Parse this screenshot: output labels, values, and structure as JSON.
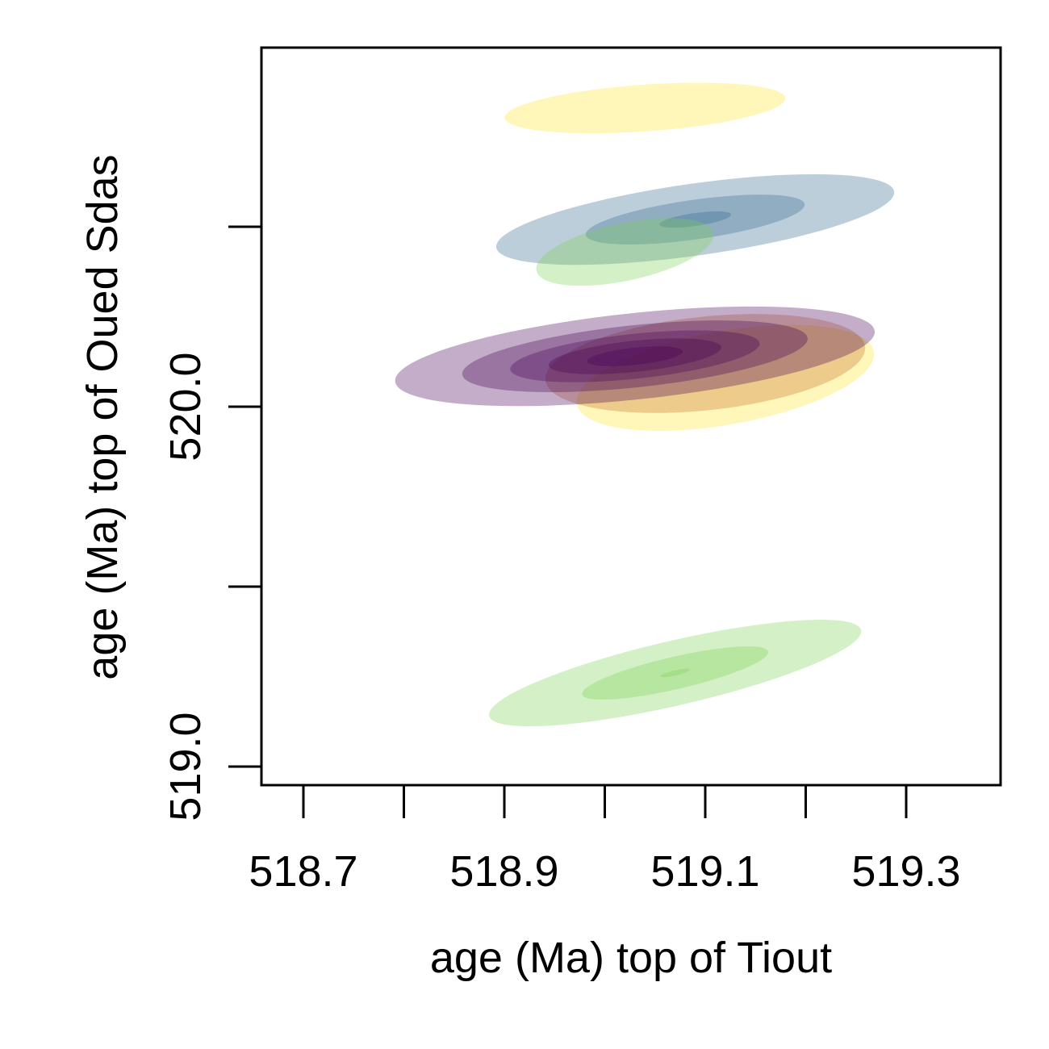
{
  "chart_data": {
    "type": "contour",
    "xlabel": "age (Ma) top of Tiout",
    "ylabel": "age (Ma) top of Oued Sdas",
    "xlim": [
      518.64,
      519.41
    ],
    "ylim": [
      518.95,
      521.0
    ],
    "x_ticks": [
      518.7,
      518.8,
      518.9,
      519.0,
      519.1,
      519.2,
      519.3
    ],
    "x_tick_labels": [
      "518.7",
      "518.9",
      "519.1",
      "519.3"
    ],
    "x_tick_labels_at": [
      518.7,
      518.9,
      519.1,
      519.3
    ],
    "y_ticks": [
      519.0,
      519.5,
      520.0,
      520.5
    ],
    "y_tick_labels": [
      "519.0",
      "520.0"
    ],
    "y_tick_labels_at": [
      519.0,
      520.0
    ],
    "grid": false,
    "series": [
      {
        "color": "#fde725",
        "clouds": [
          {
            "center": [
              519.04,
              520.83
            ],
            "spread": [
              0.14,
              0.065
            ],
            "angle": 4,
            "levels": [
              1
            ]
          },
          {
            "center": [
              519.12,
              520.08
            ],
            "spread": [
              0.15,
              0.13
            ],
            "angle": 10,
            "levels": [
              1
            ]
          }
        ]
      },
      {
        "color": "#31688e",
        "clouds": [
          {
            "center": [
              519.09,
              520.52
            ],
            "spread": [
              0.2,
              0.1
            ],
            "angle": 8,
            "levels": [
              1,
              0.55,
              0.18
            ]
          }
        ]
      },
      {
        "color": "#7ad151",
        "clouds": [
          {
            "center": [
              519.02,
              520.43
            ],
            "spread": [
              0.09,
              0.08
            ],
            "angle": 12,
            "levels": [
              1
            ]
          }
        ]
      },
      {
        "color": "#c8702a",
        "clouds": [
          {
            "center": [
              519.1,
              520.12
            ],
            "spread": [
              0.16,
              0.13
            ],
            "angle": 6,
            "levels": [
              1
            ]
          }
        ]
      },
      {
        "color": "#440154",
        "clouds": [
          {
            "center": [
              519.03,
              520.14
            ],
            "spread": [
              0.24,
              0.12
            ],
            "angle": 6,
            "levels": [
              1,
              0.72,
              0.52,
              0.36,
              0.2
            ]
          }
        ]
      },
      {
        "color": "#7ad151",
        "clouds": [
          {
            "center": [
              519.07,
              519.26
            ],
            "spread": [
              0.19,
              0.09
            ],
            "angle": 13,
            "levels": [
              1,
              0.5,
              0.08
            ]
          }
        ]
      }
    ]
  }
}
